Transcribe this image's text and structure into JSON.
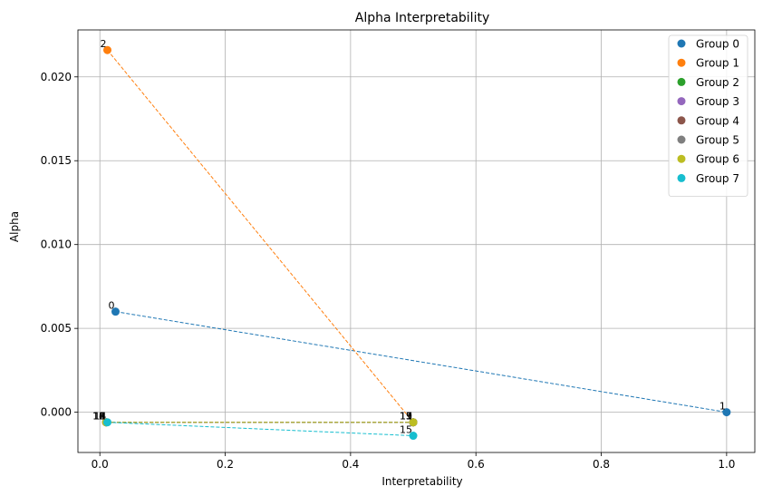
{
  "chart_data": {
    "type": "scatter",
    "title": "Alpha Interpretability",
    "xlabel": "Interpretability",
    "ylabel": "Alpha",
    "xlim": [
      -0.035,
      1.045
    ],
    "ylim": [
      -0.0024,
      0.0228
    ],
    "xticks": [
      0.0,
      0.2,
      0.4,
      0.6,
      0.8,
      1.0
    ],
    "xtick_labels": [
      "0.0",
      "0.2",
      "0.4",
      "0.6",
      "0.8",
      "1.0"
    ],
    "yticks": [
      0.0,
      0.005,
      0.01,
      0.015,
      0.02
    ],
    "ytick_labels": [
      "0.000",
      "0.005",
      "0.010",
      "0.015",
      "0.020"
    ],
    "grid": true,
    "legend_position": "top-right",
    "series": [
      {
        "name": "Group 0",
        "color": "#1f77b4",
        "points": [
          {
            "x": 0.025,
            "y": 0.006,
            "label": "0"
          },
          {
            "x": 1.0,
            "y": 0.0,
            "label": "1"
          }
        ]
      },
      {
        "name": "Group 1",
        "color": "#ff7f0e",
        "points": [
          {
            "x": 0.012,
            "y": 0.0216,
            "label": "2"
          },
          {
            "x": 0.5,
            "y": -0.0006,
            "label": "3"
          }
        ]
      },
      {
        "name": "Group 2",
        "color": "#2ca02c",
        "points": [
          {
            "x": 0.01,
            "y": -0.0006,
            "label": "4"
          },
          {
            "x": 0.5,
            "y": -0.0006,
            "label": "5"
          }
        ]
      },
      {
        "name": "Group 3",
        "color": "#9467bd",
        "points": [
          {
            "x": 0.01,
            "y": -0.0006,
            "label": "6"
          },
          {
            "x": 0.5,
            "y": -0.0006,
            "label": "7"
          }
        ]
      },
      {
        "name": "Group 4",
        "color": "#8c564b",
        "points": [
          {
            "x": 0.01,
            "y": -0.0006,
            "label": "8"
          },
          {
            "x": 0.5,
            "y": -0.0006,
            "label": "9"
          }
        ]
      },
      {
        "name": "Group 5",
        "color": "#7f7f7f",
        "points": [
          {
            "x": 0.01,
            "y": -0.0006,
            "label": "10"
          },
          {
            "x": 0.5,
            "y": -0.0006,
            "label": "11"
          }
        ]
      },
      {
        "name": "Group 6",
        "color": "#bcbd22",
        "points": [
          {
            "x": 0.01,
            "y": -0.0006,
            "label": "12"
          },
          {
            "x": 0.5,
            "y": -0.0006,
            "label": "13"
          }
        ]
      },
      {
        "name": "Group 7",
        "color": "#17becf",
        "points": [
          {
            "x": 0.012,
            "y": -0.0006,
            "label": "14"
          },
          {
            "x": 0.5,
            "y": -0.0014,
            "label": "15"
          }
        ]
      }
    ]
  }
}
